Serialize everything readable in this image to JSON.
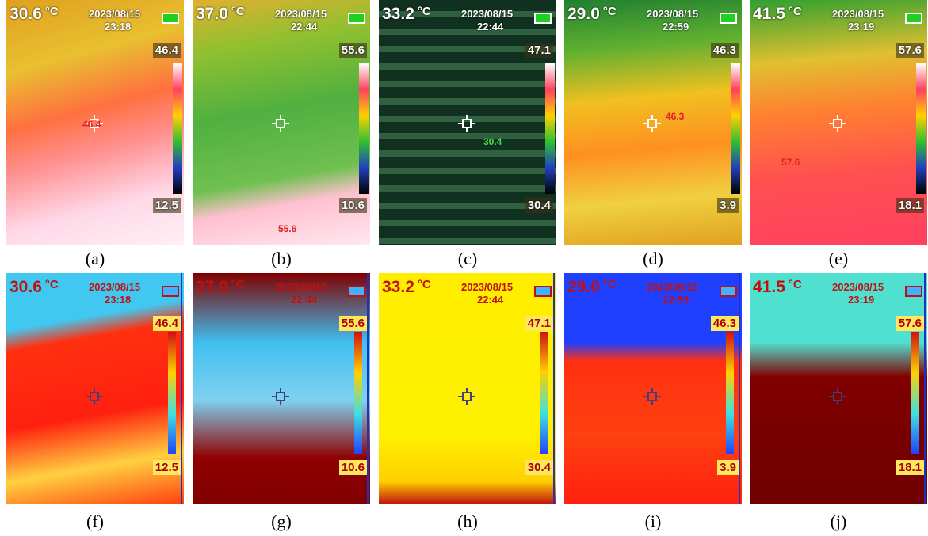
{
  "unit": "°C",
  "panels": [
    {
      "caption": "(a)",
      "temperature": "30.6",
      "date": "2023/08/15",
      "time": "23:18",
      "max": "46.4",
      "min": "12.5",
      "spot": "46.4"
    },
    {
      "caption": "(b)",
      "temperature": "37.0",
      "date": "2023/08/15",
      "time": "22:44",
      "max": "55.6",
      "min": "10.6",
      "spot": "55.6"
    },
    {
      "caption": "(c)",
      "temperature": "33.2",
      "date": "2023/08/15",
      "time": "22:44",
      "max": "47.1",
      "min": "30.4",
      "spot": "30.4"
    },
    {
      "caption": "(d)",
      "temperature": "29.0",
      "date": "2023/08/15",
      "time": "22:59",
      "max": "46.3",
      "min": "3.9",
      "spot": "46.3"
    },
    {
      "caption": "(e)",
      "temperature": "41.5",
      "date": "2023/08/15",
      "time": "23:19",
      "max": "57.6",
      "min": "18.1",
      "spot": "57.6"
    },
    {
      "caption": "(f)",
      "temperature": "30.6",
      "date": "2023/08/15",
      "time": "23:18",
      "max": "46.4",
      "min": "12.5"
    },
    {
      "caption": "(g)",
      "temperature": "37.0",
      "date": "2023/08/15",
      "time": "22:44",
      "max": "55.6",
      "min": "10.6"
    },
    {
      "caption": "(h)",
      "temperature": "33.2",
      "date": "2023/08/15",
      "time": "22:44",
      "max": "47.1",
      "min": "30.4"
    },
    {
      "caption": "(i)",
      "temperature": "29.0",
      "date": "2023/08/15",
      "time": "22:59",
      "max": "46.3",
      "min": "3.9"
    },
    {
      "caption": "(j)",
      "temperature": "41.5",
      "date": "2023/08/15",
      "time": "23:19",
      "max": "57.6",
      "min": "18.1"
    }
  ]
}
